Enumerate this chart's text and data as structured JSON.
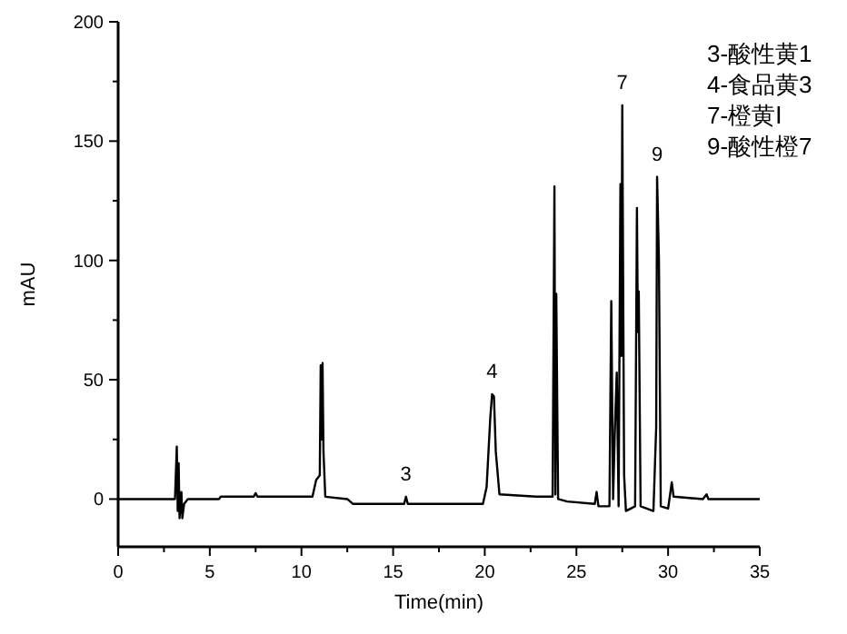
{
  "chart_data": {
    "type": "line",
    "xlabel": "Time(min)",
    "ylabel": "mAU",
    "color": "#000000",
    "xlim": [
      0,
      35
    ],
    "ylim": [
      -20,
      200
    ],
    "xticks": [
      0,
      {
        "value": 2.5,
        "label": null
      },
      5,
      {
        "value": 7.5,
        "label": null
      },
      10,
      {
        "value": 12.5,
        "label": null
      },
      15,
      {
        "value": 17.5,
        "label": null
      },
      20,
      {
        "value": 22.5,
        "label": null
      },
      25,
      {
        "value": 27.5,
        "label": null
      },
      30,
      {
        "value": 32.5,
        "label": null
      },
      35
    ],
    "yticks": [
      0,
      {
        "value": 25,
        "label": null
      },
      50,
      {
        "value": 75,
        "label": null
      },
      100,
      {
        "value": 125,
        "label": null
      },
      150,
      {
        "value": 175,
        "label": null
      },
      200
    ],
    "x": [
      0,
      3.1,
      3.2,
      3.25,
      3.3,
      3.35,
      3.45,
      3.5,
      3.6,
      3.8,
      5.5,
      5.6,
      7.4,
      7.5,
      7.6,
      10.6,
      10.8,
      11.0,
      11.05,
      11.1,
      11.15,
      11.2,
      11.3,
      12.5,
      12.8,
      15.6,
      15.7,
      15.8,
      19.9,
      20.1,
      20.3,
      20.4,
      20.5,
      20.6,
      20.8,
      22.8,
      23.7,
      23.8,
      23.85,
      23.9,
      24.0,
      24.5,
      26.0,
      26.1,
      26.2,
      26.8,
      26.85,
      26.9,
      27.0,
      27.1,
      27.2,
      27.3,
      27.4,
      27.45,
      27.5,
      27.6,
      27.7,
      28.2,
      28.3,
      28.35,
      28.4,
      28.5,
      29.2,
      29.35,
      29.4,
      29.5,
      29.6,
      30.0,
      30.2,
      30.3,
      31.9,
      32.1,
      32.2,
      35
    ],
    "values": [
      0,
      0,
      22,
      -5,
      15,
      -8,
      3,
      -8,
      -2,
      0,
      0,
      1,
      1,
      2.5,
      1,
      1,
      8,
      10,
      56,
      25,
      57,
      20,
      1,
      0,
      -2,
      -2,
      1,
      -2,
      -2,
      5,
      34,
      44,
      43,
      20,
      2,
      1,
      1,
      131,
      2,
      86,
      0,
      -1,
      -2,
      3,
      -3,
      -3,
      40,
      83,
      0,
      30,
      53,
      -3,
      132,
      60,
      165,
      10,
      -5,
      -3,
      122,
      70,
      87,
      -3,
      -5,
      30,
      135,
      100,
      -3,
      -4,
      7,
      1,
      0,
      2,
      0,
      0
    ],
    "annotations": [
      {
        "text": "3",
        "x": 15.7,
        "y": 1
      },
      {
        "text": "4",
        "x": 20.4,
        "y": 44
      },
      {
        "text": "7",
        "x": 27.5,
        "y": 165
      },
      {
        "text": "9",
        "x": 29.4,
        "y": 135
      },
      "3-酸性黄1",
      "4-食品黄3",
      "7-橙黄Ⅰ",
      "9-酸性橙7"
    ]
  }
}
